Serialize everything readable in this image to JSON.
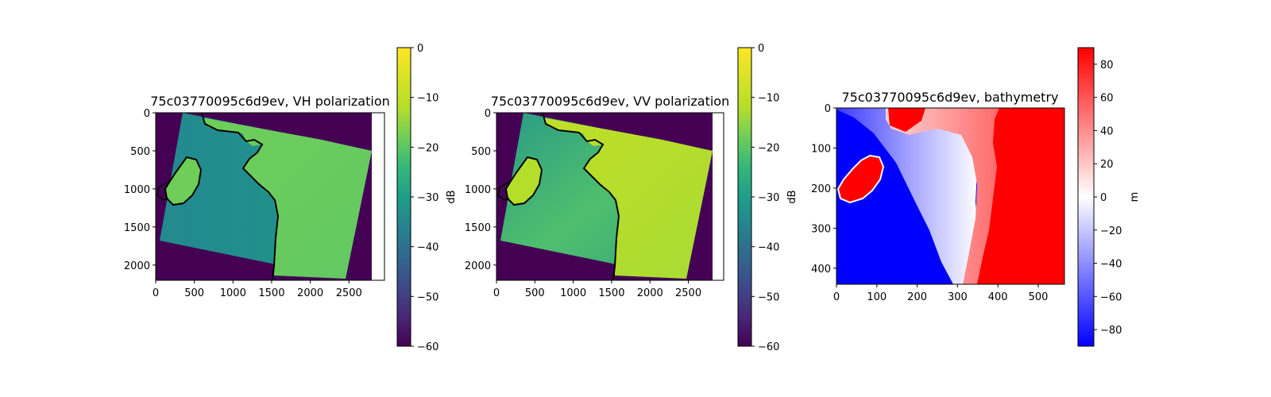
{
  "chart_data": [
    {
      "type": "heatmap",
      "title": "75c03770095c6d9ev, VH polarization",
      "xlabel": "",
      "ylabel": "",
      "x_ticks": [
        0,
        500,
        1000,
        1500,
        2000,
        2500
      ],
      "y_ticks": [
        0,
        500,
        1000,
        1500,
        2000
      ],
      "xlim": [
        0,
        2960
      ],
      "ylim": [
        2200,
        0
      ],
      "image_size": [
        2800,
        2200
      ],
      "colormap": "viridis",
      "colorbar": {
        "label": "dB",
        "range": [
          -60,
          0
        ],
        "ticks": [
          0,
          -10,
          -20,
          -30,
          -40,
          -50,
          -60
        ]
      },
      "colors": {
        "nodata": "#440154",
        "land": "#6ece58",
        "sea": "#20928c",
        "coastline": "#000000"
      }
    },
    {
      "type": "heatmap",
      "title": "75c03770095c6d9ev, VV polarization",
      "xlabel": "",
      "ylabel": "",
      "x_ticks": [
        0,
        500,
        1000,
        1500,
        2000,
        2500
      ],
      "y_ticks": [
        0,
        500,
        1000,
        1500,
        2000
      ],
      "xlim": [
        0,
        2960
      ],
      "ylim": [
        2200,
        0
      ],
      "image_size": [
        2800,
        2200
      ],
      "colormap": "viridis",
      "colorbar": {
        "label": "dB",
        "range": [
          -60,
          0
        ],
        "ticks": [
          0,
          -10,
          -20,
          -30,
          -40,
          -50,
          -60
        ]
      },
      "colors": {
        "nodata": "#440154",
        "land": "#b5de2b",
        "sea": "#35b779",
        "coastline": "#000000"
      }
    },
    {
      "type": "heatmap",
      "title": "75c03770095c6d9ev, bathymetry",
      "xlabel": "",
      "ylabel": "",
      "x_ticks": [
        0,
        100,
        200,
        300,
        400,
        500
      ],
      "y_ticks": [
        0,
        100,
        200,
        300,
        400
      ],
      "xlim": [
        0,
        565
      ],
      "ylim": [
        440,
        0
      ],
      "colormap": "bwr",
      "colorbar": {
        "label": "m",
        "range": [
          -90,
          90
        ],
        "ticks": [
          80,
          60,
          40,
          20,
          0,
          -20,
          -40,
          -60,
          -80
        ]
      },
      "colors": {
        "land": "#ff0000",
        "deep": "#0000ff",
        "coast": "#ffffff"
      }
    }
  ]
}
